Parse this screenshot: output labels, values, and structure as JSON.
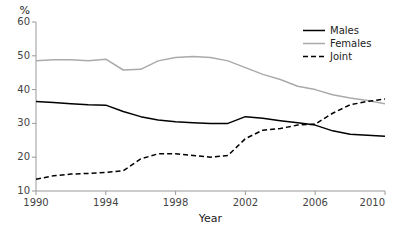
{
  "chart_data": {
    "type": "line",
    "x": [
      1990,
      1991,
      1992,
      1993,
      1994,
      1995,
      1996,
      1997,
      1998,
      1999,
      2000,
      2001,
      2002,
      2003,
      2004,
      2005,
      2006,
      2007,
      2008,
      2009,
      2010
    ],
    "series": [
      {
        "name": "Males",
        "color": "#000000",
        "line_style": "solid",
        "values": [
          36.5,
          36.2,
          35.8,
          35.5,
          35.4,
          33.5,
          32.0,
          31.0,
          30.5,
          30.2,
          30.0,
          30.0,
          32.0,
          31.5,
          30.8,
          30.2,
          29.5,
          27.8,
          26.8,
          26.5,
          26.2
        ]
      },
      {
        "name": "Females",
        "color": "#aaaaaa",
        "line_style": "solid",
        "values": [
          48.5,
          48.8,
          48.8,
          48.5,
          49.0,
          45.8,
          46.0,
          48.5,
          49.5,
          49.8,
          49.5,
          48.5,
          46.5,
          44.5,
          43.0,
          41.0,
          40.0,
          38.5,
          37.5,
          36.8,
          35.8
        ]
      },
      {
        "name": "Joint",
        "color": "#000000",
        "line_style": "dashed",
        "values": [
          13.5,
          14.5,
          15.0,
          15.2,
          15.5,
          16.0,
          19.5,
          21.0,
          21.0,
          20.5,
          20.0,
          20.5,
          25.5,
          28.0,
          28.5,
          29.5,
          29.8,
          33.0,
          35.5,
          36.5,
          37.2
        ]
      }
    ],
    "xlim": [
      1990,
      2010
    ],
    "ylim": [
      10,
      60
    ],
    "xticks": [
      1990,
      1994,
      1998,
      2002,
      2006,
      2010
    ],
    "yticks": [
      10,
      20,
      30,
      40,
      50,
      60
    ],
    "xlabel": "Year",
    "ylabel": "%",
    "legend": "upper right",
    "grid": false
  }
}
